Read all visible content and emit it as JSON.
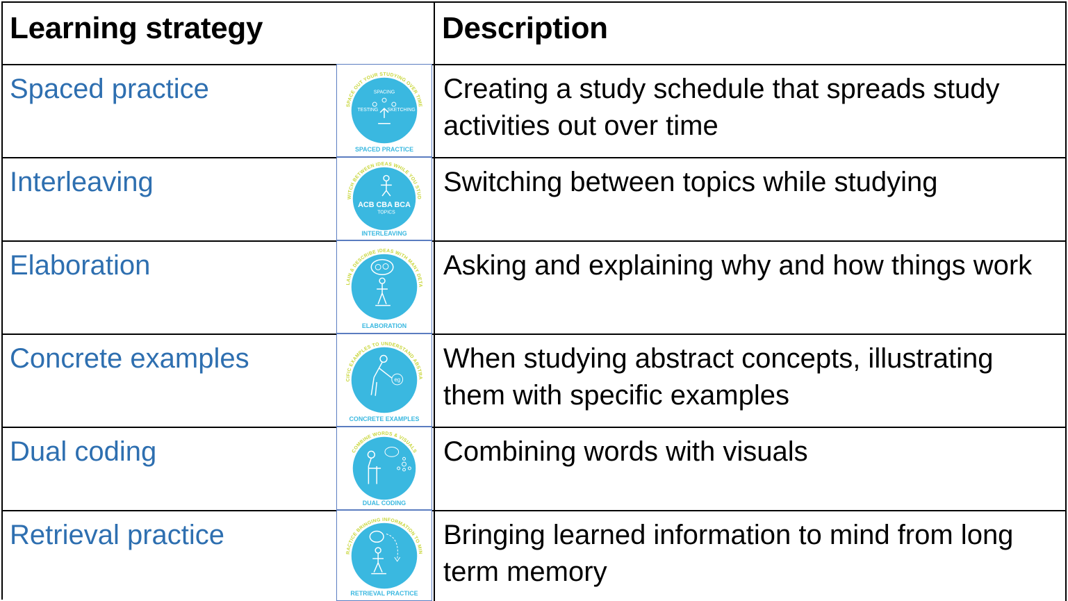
{
  "header": {
    "col1": "Learning strategy",
    "col2": "Description"
  },
  "rows": [
    {
      "strategy": "Spaced practice",
      "description": "Creating a study schedule that spreads study activities out over time",
      "icon": "spaced-practice-icon",
      "badge_ring": "SPACE OUT YOUR STUDYING OVER TIME",
      "badge_label": "SPACED PRACTICE",
      "badge_inner": [
        "SPACING",
        "TESTING",
        "SKETCHING"
      ]
    },
    {
      "strategy": "Interleaving",
      "description": "Switching between topics while studying",
      "icon": "interleaving-icon",
      "badge_ring": "SWITCH BETWEEN IDEAS WHILE YOU STUDY",
      "badge_label": "INTERLEAVING",
      "badge_inner": [
        "ACB CBA BCA",
        "TOPICS"
      ]
    },
    {
      "strategy": "Elaboration",
      "description": "Asking and explaining why and how things work",
      "icon": "elaboration-icon",
      "badge_ring": "EXPLAIN & DESCRIBE IDEAS WITH MANY DETAILS",
      "badge_label": "ELABORATION",
      "badge_inner": []
    },
    {
      "strategy": "Concrete examples",
      "description": "When studying abstract concepts, illustrating them with specific examples",
      "icon": "concrete-examples-icon",
      "badge_ring": "USE SPECIFIC EXAMPLES TO UNDERSTAND ABSTRACT IDEAS",
      "badge_label": "CONCRETE EXAMPLES",
      "badge_inner": [
        "eg"
      ]
    },
    {
      "strategy": "Dual coding",
      "description": "Combining words with visuals",
      "icon": "dual-coding-icon",
      "badge_ring": "COMBINE WORDS & VISUALS",
      "badge_label": "DUAL CODING",
      "badge_inner": []
    },
    {
      "strategy": "Retrieval practice",
      "description": "Bringing learned information to mind from long term memory",
      "icon": "retrieval-practice-icon",
      "badge_ring": "PRACTICE BRINGING INFORMATION TO MIND",
      "badge_label": "RETRIEVAL PRACTICE",
      "badge_inner": []
    }
  ],
  "colors": {
    "strategy_text": "#2e6fb0",
    "badge_fill": "#3ab8e0",
    "badge_ring_text": "#c8d63a",
    "border": "#000000"
  }
}
